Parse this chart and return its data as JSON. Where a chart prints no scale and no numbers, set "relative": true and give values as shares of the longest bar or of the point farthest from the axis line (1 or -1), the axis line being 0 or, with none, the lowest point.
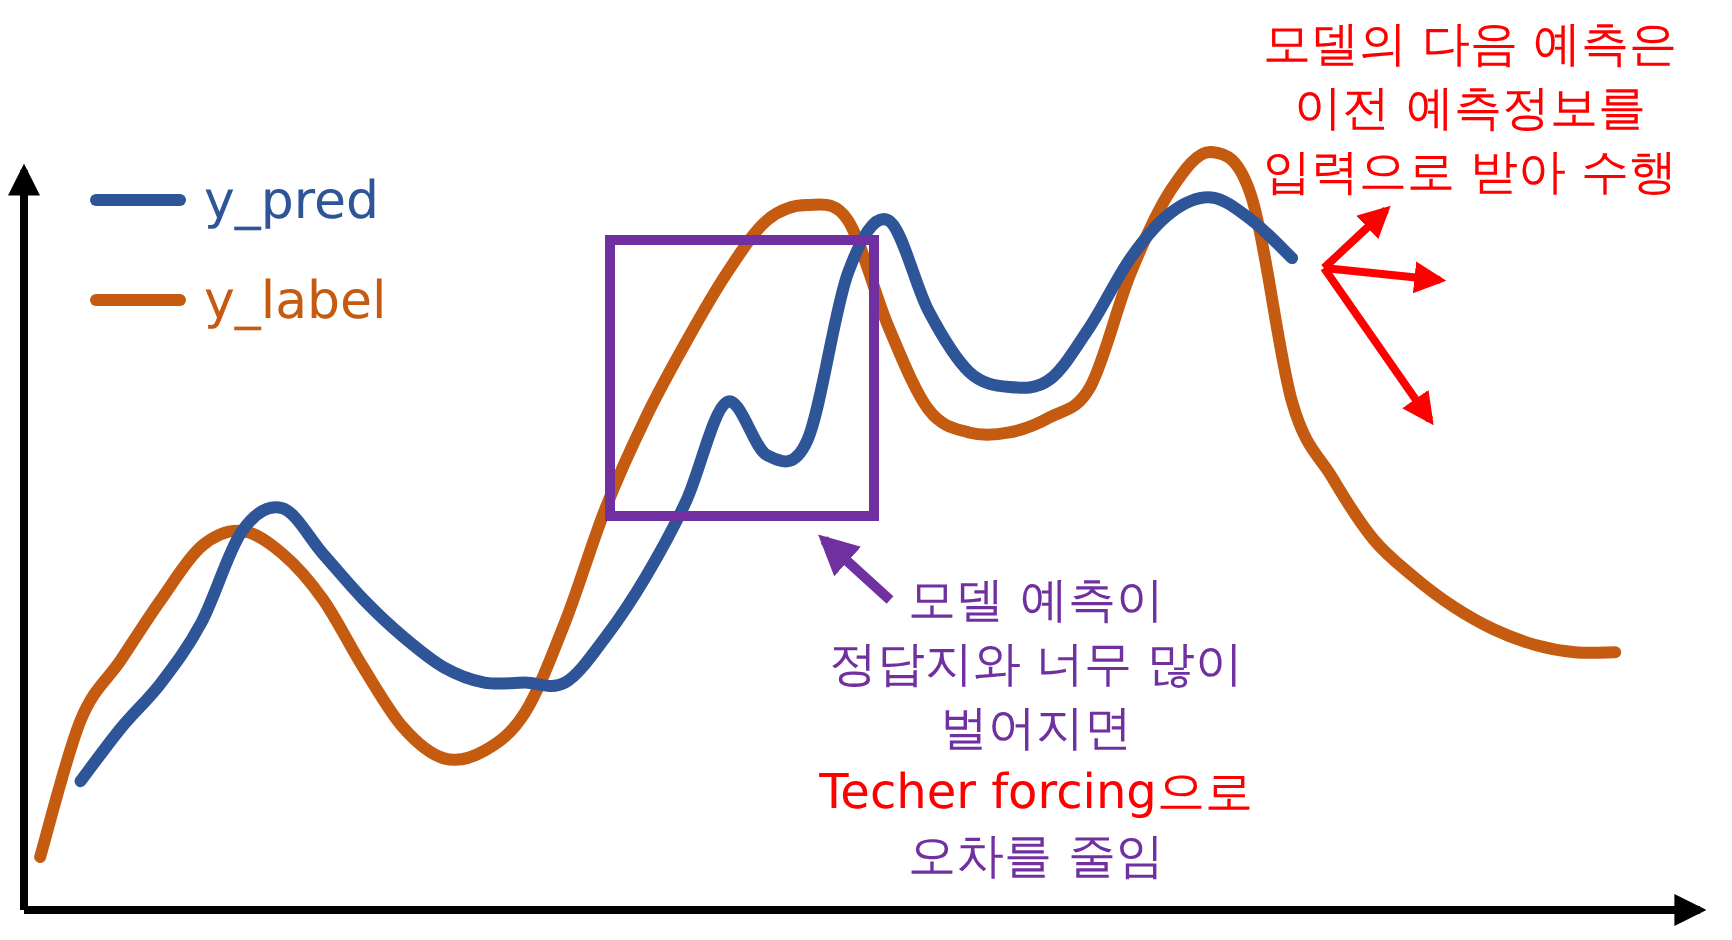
{
  "chart_data": {
    "type": "line",
    "relative": true,
    "legend": "top left",
    "categories": [
      null,
      null,
      null,
      null,
      null,
      null,
      null,
      null,
      null,
      null,
      null,
      null,
      null,
      null,
      null,
      null,
      null,
      null,
      null,
      null,
      null,
      null,
      null,
      null,
      null,
      null,
      null,
      null,
      null,
      null,
      null,
      null,
      null,
      null,
      null,
      null,
      null,
      null,
      null,
      null
    ],
    "series": [
      {
        "name": "y_pred",
        "color": "#2e5597",
        "values": [
          null,
          0.17,
          0.24,
          0.3,
          0.38,
          0.5,
          0.53,
          0.47,
          0.41,
          0.36,
          0.32,
          0.3,
          0.3,
          0.3,
          0.36,
          0.44,
          0.54,
          0.67,
          0.6,
          0.62,
          0.84,
          0.91,
          0.79,
          0.71,
          0.69,
          0.7,
          0.77,
          0.86,
          0.92,
          0.94,
          0.91,
          0.86,
          null,
          null,
          null,
          null,
          null,
          null,
          null,
          null
        ]
      },
      {
        "name": "y_label",
        "color": "#c55a11",
        "values": [
          0.07,
          0.25,
          0.33,
          0.41,
          0.48,
          0.5,
          0.47,
          0.41,
          0.32,
          0.24,
          0.2,
          0.21,
          0.26,
          0.38,
          0.53,
          0.65,
          0.75,
          0.84,
          0.91,
          0.93,
          0.91,
          0.77,
          0.66,
          0.63,
          0.63,
          0.65,
          0.69,
          0.84,
          0.95,
          1,
          0.94,
          0.67,
          0.57,
          0.49,
          0.44,
          0.4,
          0.37,
          0.35,
          0.34,
          0.34
        ]
      }
    ],
    "annotations": [
      "모델의 다음 예측은\n이전 예측정보를\n입력으로 받아 수행",
      "모델 예측이\n정답지와 너무 많이\n벌어지면",
      "Techer forcing으로",
      "오차를 줄임"
    ]
  }
}
